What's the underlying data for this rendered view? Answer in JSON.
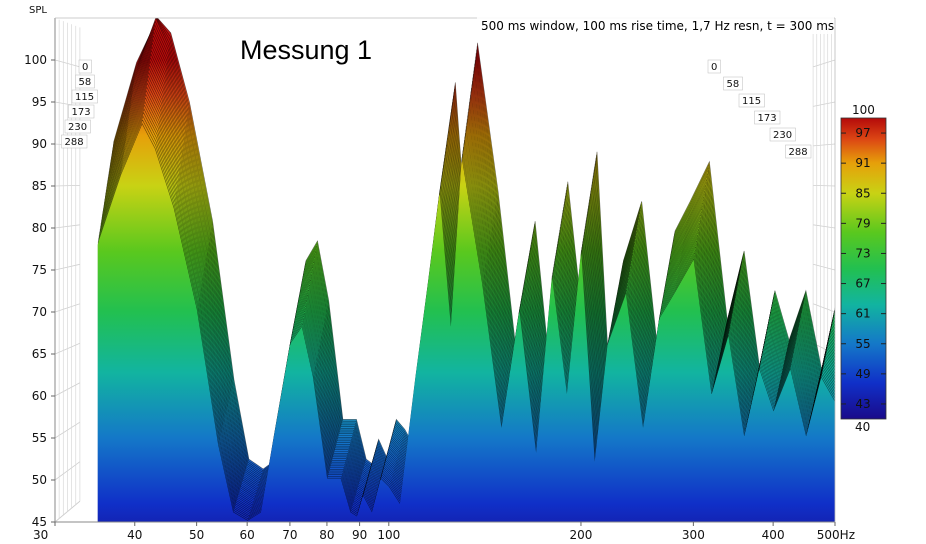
{
  "chart_data": {
    "type": "area",
    "title": "Messung 1",
    "info": "500 ms window, 100 ms rise time,  1,7 Hz resn, t = 300 ms",
    "ylabel": "SPL",
    "x_axis": {
      "scale": "log",
      "xlim": [
        30,
        500
      ],
      "ticks": [
        {
          "value": 30,
          "label": "30"
        },
        {
          "value": 40,
          "label": "40"
        },
        {
          "value": 50,
          "label": "50"
        },
        {
          "value": 60,
          "label": "60"
        },
        {
          "value": 70,
          "label": "70"
        },
        {
          "value": 80,
          "label": "80"
        },
        {
          "value": 90,
          "label": "90"
        },
        {
          "value": 100,
          "label": "100"
        },
        {
          "value": 200,
          "label": "200"
        },
        {
          "value": 300,
          "label": "300"
        },
        {
          "value": 400,
          "label": "400"
        },
        {
          "value": 500,
          "label": "500Hz"
        }
      ]
    },
    "y_axis": {
      "ylim": [
        45,
        105
      ],
      "ticks": [
        {
          "value": 45,
          "label": "45"
        },
        {
          "value": 50,
          "label": "50"
        },
        {
          "value": 55,
          "label": "55"
        },
        {
          "value": 60,
          "label": "60"
        },
        {
          "value": 65,
          "label": "65"
        },
        {
          "value": 70,
          "label": "70"
        },
        {
          "value": 75,
          "label": "75"
        },
        {
          "value": 80,
          "label": "80"
        },
        {
          "value": 85,
          "label": "85"
        },
        {
          "value": 90,
          "label": "90"
        },
        {
          "value": 95,
          "label": "95"
        },
        {
          "value": 100,
          "label": "100"
        }
      ]
    },
    "time_axis": {
      "unit": "ms",
      "labels": [
        "0",
        "58",
        "115",
        "173",
        "230",
        "288"
      ]
    },
    "colorbar": {
      "min": 40,
      "max": 100,
      "min_label": "40",
      "max_label": "100",
      "ticks": [
        {
          "value": 97,
          "label": "97"
        },
        {
          "value": 91,
          "label": "91"
        },
        {
          "value": 85,
          "label": "85"
        },
        {
          "value": 79,
          "label": "79"
        },
        {
          "value": 73,
          "label": "73"
        },
        {
          "value": 67,
          "label": "67"
        },
        {
          "value": 61,
          "label": "61"
        },
        {
          "value": 55,
          "label": "55"
        },
        {
          "value": 49,
          "label": "49"
        },
        {
          "value": 43,
          "label": "43"
        }
      ]
    },
    "series": [
      {
        "x": [
          35,
          38,
          41,
          43,
          46,
          50,
          54,
          57,
          60,
          63,
          66,
          70,
          73,
          76,
          80,
          84,
          87,
          89,
          91,
          94,
          97,
          100,
          104,
          110,
          115,
          120,
          125,
          130,
          140,
          150,
          160,
          170,
          180,
          190,
          200,
          210,
          220,
          235,
          250,
          265,
          280,
          300,
          320,
          340,
          360,
          380,
          400,
          425,
          450,
          475,
          500
        ],
        "values": [
          78,
          86,
          92,
          89,
          82,
          70,
          54,
          46,
          45,
          46,
          55,
          66,
          68,
          62,
          50,
          50,
          46,
          45.5,
          48,
          46,
          50,
          49,
          47,
          62,
          73,
          84,
          68,
          88,
          73,
          56,
          70,
          53,
          74,
          60,
          77,
          52,
          66,
          72,
          56,
          69,
          72,
          76,
          60,
          67,
          55,
          63,
          58,
          63,
          55,
          62,
          59
        ]
      }
    ]
  }
}
